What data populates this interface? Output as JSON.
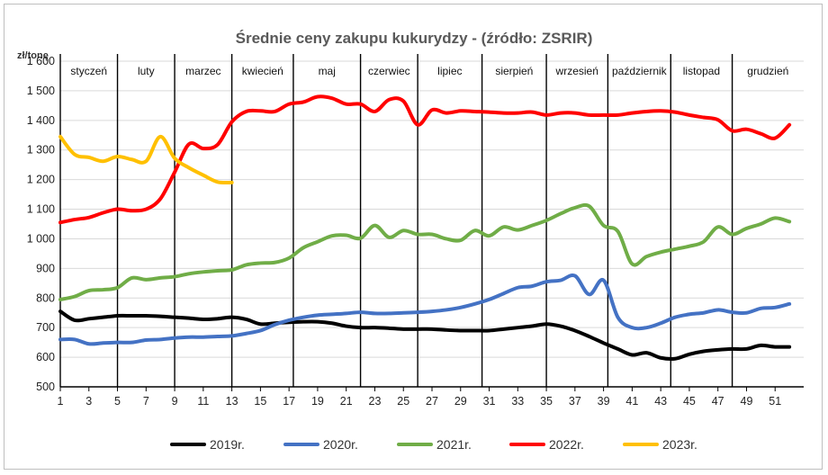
{
  "chart_data": {
    "type": "line",
    "title": "Średnie ceny zakupu kukurydzy - (źródło: ZSRIR)",
    "ylabel": "zł/tonę",
    "xlabel": "",
    "xlim": [
      1,
      53
    ],
    "ylim": [
      500,
      1600
    ],
    "yticks": [
      500,
      600,
      700,
      800,
      900,
      1000,
      1100,
      1200,
      1300,
      1400,
      1500,
      1600
    ],
    "ytick_labels": [
      "500",
      "600",
      "700",
      "800",
      "900",
      "1 000",
      "1 100",
      "1 200",
      "1 300",
      "1 400",
      "1 500",
      "1 600"
    ],
    "xticks": [
      1,
      3,
      5,
      7,
      9,
      11,
      13,
      15,
      17,
      19,
      21,
      23,
      25,
      27,
      29,
      31,
      33,
      35,
      37,
      39,
      41,
      43,
      45,
      47,
      49,
      51
    ],
    "grid": true,
    "legend_position": "bottom",
    "months": [
      {
        "label": "styczeń",
        "start": 1,
        "end": 5
      },
      {
        "label": "luty",
        "start": 5,
        "end": 9
      },
      {
        "label": "marzec",
        "start": 9,
        "end": 13
      },
      {
        "label": "kwiecień",
        "start": 13,
        "end": 17.3
      },
      {
        "label": "maj",
        "start": 17.3,
        "end": 22
      },
      {
        "label": "czerwiec",
        "start": 22,
        "end": 26
      },
      {
        "label": "lipiec",
        "start": 26,
        "end": 30.5
      },
      {
        "label": "sierpień",
        "start": 30.5,
        "end": 35
      },
      {
        "label": "wrzesień",
        "start": 35,
        "end": 39.3
      },
      {
        "label": "październik",
        "start": 39.3,
        "end": 43.7
      },
      {
        "label": "listopad",
        "start": 43.7,
        "end": 48
      },
      {
        "label": "grudzień",
        "start": 48,
        "end": 53
      }
    ],
    "series": [
      {
        "name": "2019r.",
        "color": "#000000",
        "x": [
          1,
          2,
          3,
          4,
          5,
          6,
          7,
          8,
          9,
          10,
          11,
          12,
          13,
          14,
          15,
          16,
          17,
          18,
          19,
          20,
          21,
          22,
          23,
          24,
          25,
          26,
          27,
          28,
          29,
          30,
          31,
          32,
          33,
          34,
          35,
          36,
          37,
          38,
          39,
          40,
          41,
          42,
          43,
          44,
          45,
          46,
          47,
          48,
          49,
          50,
          51,
          52
        ],
        "y": [
          755,
          725,
          730,
          735,
          740,
          740,
          740,
          738,
          735,
          732,
          728,
          730,
          735,
          728,
          712,
          715,
          718,
          720,
          720,
          715,
          705,
          700,
          700,
          698,
          695,
          695,
          695,
          692,
          690,
          690,
          690,
          695,
          700,
          705,
          712,
          705,
          690,
          670,
          648,
          628,
          608,
          615,
          598,
          595,
          610,
          620,
          625,
          628,
          628,
          640,
          635,
          635
        ]
      },
      {
        "name": "2020r.",
        "color": "#4472C4",
        "x": [
          1,
          2,
          3,
          4,
          5,
          6,
          7,
          8,
          9,
          10,
          11,
          12,
          13,
          14,
          15,
          16,
          17,
          18,
          19,
          20,
          21,
          22,
          23,
          24,
          25,
          26,
          27,
          28,
          29,
          30,
          31,
          32,
          33,
          34,
          35,
          36,
          37,
          38,
          39,
          40,
          41,
          42,
          43,
          44,
          45,
          46,
          47,
          48,
          49,
          50,
          51,
          52
        ],
        "y": [
          660,
          660,
          645,
          648,
          650,
          650,
          658,
          660,
          665,
          668,
          668,
          670,
          672,
          680,
          690,
          710,
          725,
          735,
          742,
          745,
          748,
          752,
          748,
          748,
          750,
          752,
          755,
          760,
          768,
          780,
          795,
          815,
          835,
          840,
          855,
          860,
          875,
          812,
          860,
          735,
          700,
          700,
          715,
          735,
          745,
          750,
          760,
          752,
          750,
          765,
          768,
          780
        ]
      },
      {
        "name": "2021r.",
        "color": "#70AD47",
        "x": [
          1,
          2,
          3,
          4,
          5,
          6,
          7,
          8,
          9,
          10,
          11,
          12,
          13,
          14,
          15,
          16,
          17,
          18,
          19,
          20,
          21,
          22,
          23,
          24,
          25,
          26,
          27,
          28,
          29,
          30,
          31,
          32,
          33,
          34,
          35,
          36,
          37,
          38,
          39,
          40,
          41,
          42,
          43,
          44,
          45,
          46,
          47,
          48,
          49,
          50,
          51,
          52
        ],
        "y": [
          795,
          805,
          825,
          828,
          835,
          868,
          862,
          868,
          872,
          882,
          888,
          892,
          895,
          912,
          918,
          920,
          935,
          970,
          990,
          1010,
          1012,
          1002,
          1045,
          1005,
          1028,
          1015,
          1015,
          1000,
          995,
          1028,
          1010,
          1040,
          1030,
          1045,
          1062,
          1085,
          1105,
          1110,
          1045,
          1025,
          915,
          940,
          955,
          965,
          975,
          990,
          1040,
          1015,
          1035,
          1050,
          1070,
          1058
        ]
      },
      {
        "name": "2022r.",
        "color": "#FF0000",
        "x": [
          1,
          2,
          3,
          4,
          5,
          6,
          7,
          8,
          9,
          10,
          11,
          12,
          13,
          14,
          15,
          16,
          17,
          18,
          19,
          20,
          21,
          22,
          23,
          24,
          25,
          26,
          27,
          28,
          29,
          30,
          31,
          32,
          33,
          34,
          35,
          36,
          37,
          38,
          39,
          40,
          41,
          42,
          43,
          44,
          45,
          46,
          47,
          48,
          49,
          50,
          51,
          52
        ],
        "y": [
          1055,
          1065,
          1072,
          1088,
          1100,
          1095,
          1100,
          1135,
          1225,
          1320,
          1305,
          1318,
          1395,
          1430,
          1432,
          1430,
          1455,
          1462,
          1480,
          1475,
          1455,
          1455,
          1430,
          1470,
          1465,
          1385,
          1435,
          1425,
          1432,
          1430,
          1428,
          1425,
          1425,
          1428,
          1418,
          1425,
          1425,
          1418,
          1418,
          1418,
          1425,
          1430,
          1432,
          1428,
          1418,
          1410,
          1402,
          1365,
          1370,
          1355,
          1340,
          1385
        ]
      },
      {
        "name": "2023r.",
        "color": "#FFC000",
        "x": [
          1,
          2,
          3,
          4,
          5,
          6,
          7,
          8,
          9,
          10,
          11,
          12,
          13
        ],
        "y": [
          1345,
          1285,
          1275,
          1262,
          1278,
          1268,
          1262,
          1345,
          1272,
          1240,
          1215,
          1192,
          1190
        ]
      }
    ]
  }
}
